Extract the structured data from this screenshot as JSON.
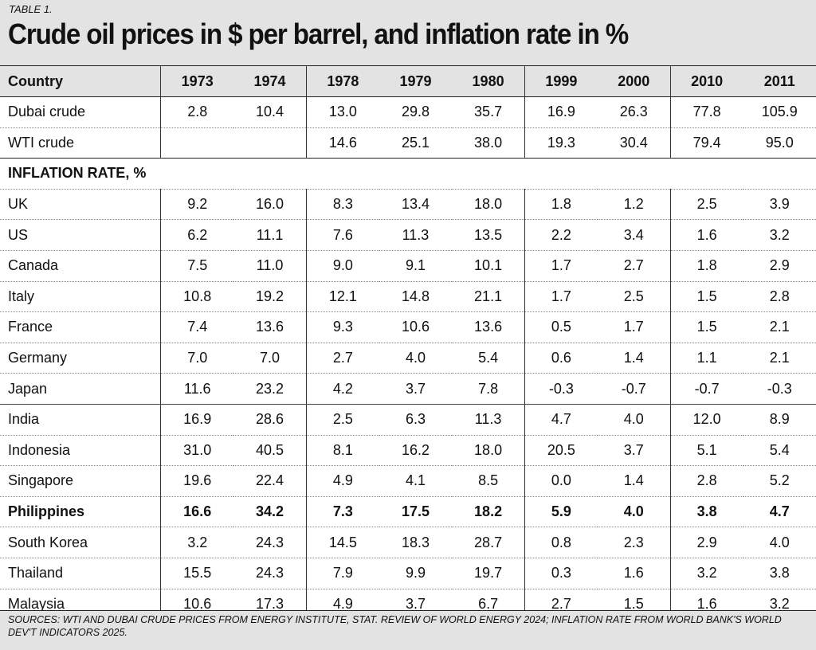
{
  "header": {
    "table_label": "TABLE 1.",
    "title": "Crude oil prices in $ per barrel, and inflation rate in %"
  },
  "columns": [
    "Country",
    "1973",
    "1974",
    "1978",
    "1979",
    "1980",
    "1999",
    "2000",
    "2010",
    "2011"
  ],
  "oil_rows": [
    {
      "name": "Dubai crude",
      "values": [
        "2.8",
        "10.4",
        "13.0",
        "29.8",
        "35.7",
        "16.9",
        "26.3",
        "77.8",
        "105.9"
      ]
    },
    {
      "name": "WTI crude",
      "values": [
        "",
        "",
        "14.6",
        "25.1",
        "38.0",
        "19.3",
        "30.4",
        "79.4",
        "95.0"
      ]
    }
  ],
  "inflation_section": "INFLATION RATE, %",
  "inflation_rows": [
    {
      "name": "UK",
      "values": [
        "9.2",
        "16.0",
        "8.3",
        "13.4",
        "18.0",
        "1.8",
        "1.2",
        "2.5",
        "3.9"
      ]
    },
    {
      "name": "US",
      "values": [
        "6.2",
        "11.1",
        "7.6",
        "11.3",
        "13.5",
        "2.2",
        "3.4",
        "1.6",
        "3.2"
      ]
    },
    {
      "name": "Canada",
      "values": [
        "7.5",
        "11.0",
        "9.0",
        "9.1",
        "10.1",
        "1.7",
        "2.7",
        "1.8",
        "2.9"
      ]
    },
    {
      "name": "Italy",
      "values": [
        "10.8",
        "19.2",
        "12.1",
        "14.8",
        "21.1",
        "1.7",
        "2.5",
        "1.5",
        "2.8"
      ]
    },
    {
      "name": "France",
      "values": [
        "7.4",
        "13.6",
        "9.3",
        "10.6",
        "13.6",
        "0.5",
        "1.7",
        "1.5",
        "2.1"
      ]
    },
    {
      "name": "Germany",
      "values": [
        "7.0",
        "7.0",
        "2.7",
        "4.0",
        "5.4",
        "0.6",
        "1.4",
        "1.1",
        "2.1"
      ]
    },
    {
      "name": "Japan",
      "values": [
        "11.6",
        "23.2",
        "4.2",
        "3.7",
        "7.8",
        "-0.3",
        "-0.7",
        "-0.7",
        "-0.3"
      ]
    },
    {
      "name": "India",
      "values": [
        "16.9",
        "28.6",
        "2.5",
        "6.3",
        "11.3",
        "4.7",
        "4.0",
        "12.0",
        "8.9"
      ]
    },
    {
      "name": "Indonesia",
      "values": [
        "31.0",
        "40.5",
        "8.1",
        "16.2",
        "18.0",
        "20.5",
        "3.7",
        "5.1",
        "5.4"
      ]
    },
    {
      "name": "Singapore",
      "values": [
        "19.6",
        "22.4",
        "4.9",
        "4.1",
        "8.5",
        "0.0",
        "1.4",
        "2.8",
        "5.2"
      ]
    },
    {
      "name": "Philippines",
      "values": [
        "16.6",
        "34.2",
        "7.3",
        "17.5",
        "18.2",
        "5.9",
        "4.0",
        "3.8",
        "4.7"
      ],
      "bold": true
    },
    {
      "name": "South Korea",
      "values": [
        "3.2",
        "24.3",
        "14.5",
        "18.3",
        "28.7",
        "0.8",
        "2.3",
        "2.9",
        "4.0"
      ]
    },
    {
      "name": "Thailand",
      "values": [
        "15.5",
        "24.3",
        "7.9",
        "9.9",
        "19.7",
        "0.3",
        "1.6",
        "3.2",
        "3.8"
      ]
    },
    {
      "name": "Malaysia",
      "values": [
        "10.6",
        "17.3",
        "4.9",
        "3.7",
        "6.7",
        "2.7",
        "1.5",
        "1.6",
        "3.2"
      ]
    }
  ],
  "footer": {
    "sources": "SOURCES: WTI AND DUBAI CRUDE PRICES FROM ENERGY INSTITUTE, STAT. REVIEW OF WORLD ENERGY 2024; INFLATION RATE FROM WORLD BANK'S WORLD DEV'T INDICATORS 2025."
  }
}
